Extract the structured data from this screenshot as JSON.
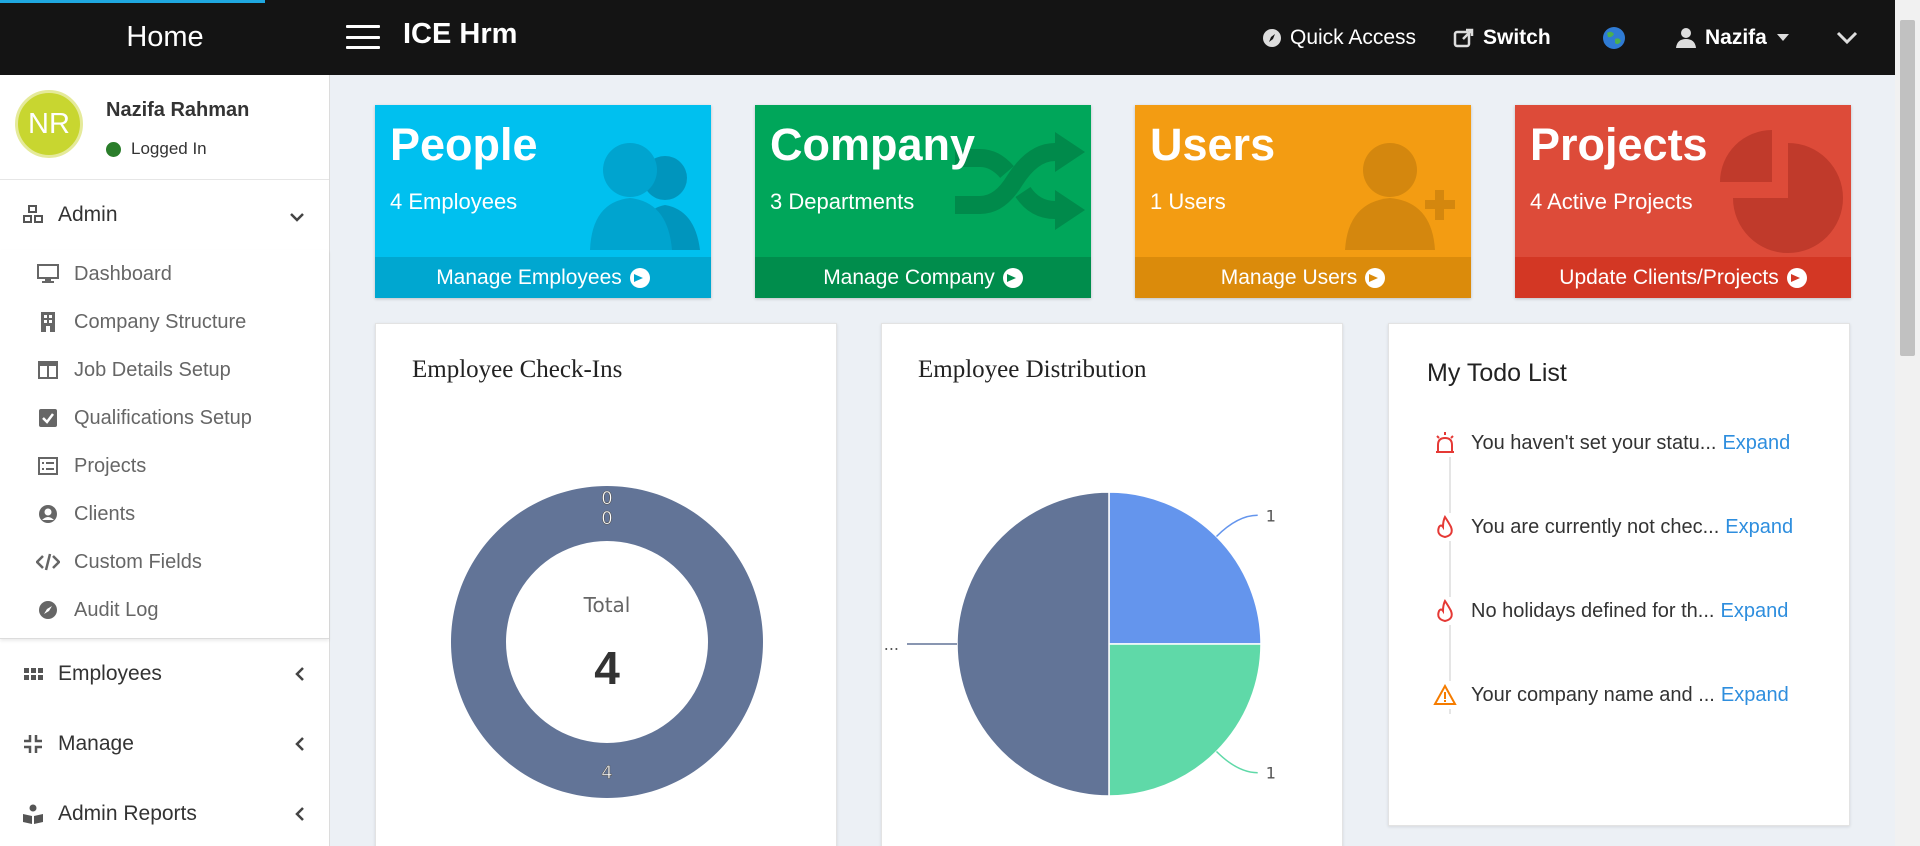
{
  "topbar": {
    "home_label": "Home",
    "app_title": "ICE Hrm",
    "quick_access": "Quick Access",
    "switch": "Switch",
    "user_name": "Nazifa"
  },
  "profile": {
    "initials": "NR",
    "name": "Nazifa Rahman",
    "status": "Logged In"
  },
  "sidebar": {
    "admin": {
      "label": "Admin",
      "items": [
        {
          "label": "Dashboard",
          "icon": "monitor-icon"
        },
        {
          "label": "Company Structure",
          "icon": "building-icon"
        },
        {
          "label": "Job Details Setup",
          "icon": "columns-icon"
        },
        {
          "label": "Qualifications Setup",
          "icon": "check-square-icon"
        },
        {
          "label": "Projects",
          "icon": "list-icon"
        },
        {
          "label": "Clients",
          "icon": "user-circle-icon"
        },
        {
          "label": "Custom Fields",
          "icon": "code-icon"
        },
        {
          "label": "Audit Log",
          "icon": "compass-icon"
        }
      ]
    },
    "employees": "Employees",
    "manage": "Manage",
    "admin_reports": "Admin Reports"
  },
  "cards": {
    "people": {
      "title": "People",
      "sub": "4 Employees",
      "link": "Manage Employees",
      "color": "#00c0ef"
    },
    "company": {
      "title": "Company",
      "sub": "3 Departments",
      "link": "Manage Company",
      "color": "#00a65a"
    },
    "users": {
      "title": "Users",
      "sub": "1 Users",
      "link": "Manage Users",
      "color": "#f39c12"
    },
    "projects": {
      "title": "Projects",
      "sub": "4 Active Projects",
      "link": "Update Clients/Projects",
      "color": "#dd4b39"
    }
  },
  "checkins": {
    "title": "Employee Check-Ins",
    "center_label": "Total",
    "center_value": "4"
  },
  "distribution": {
    "title": "Employee Distribution"
  },
  "chart_data": [
    {
      "type": "pie",
      "title": "Employee Check-Ins",
      "categories": [
        "",
        "",
        ""
      ],
      "values": [
        0,
        0,
        4
      ],
      "labels": [
        "0",
        "0",
        "4"
      ],
      "colors": [
        "#6495ed",
        "#5fd9a8",
        "#627497"
      ]
    },
    {
      "type": "pie",
      "title": "Employee Distribution",
      "categories": [
        "",
        "",
        ""
      ],
      "values": [
        1,
        1,
        2
      ],
      "labels": [
        "1",
        "1",
        "..."
      ],
      "colors": [
        "#6495ed",
        "#5fd9a8",
        "#627497"
      ]
    }
  ],
  "todo": {
    "title": "My Todo List",
    "expand": "Expand",
    "items": [
      {
        "text": "You haven't set your statu...",
        "icon": "alarm-icon"
      },
      {
        "text": "You are currently not chec...",
        "icon": "fire-icon"
      },
      {
        "text": "No holidays defined for th...",
        "icon": "fire-icon"
      },
      {
        "text": "Your company name and ...",
        "icon": "warning-icon"
      }
    ]
  }
}
